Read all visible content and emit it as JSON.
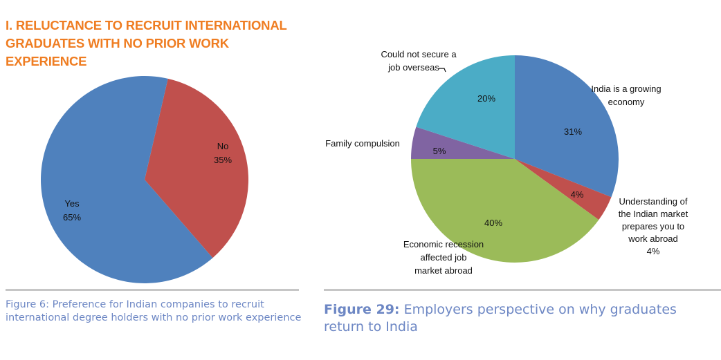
{
  "section_title": "I. RELUCTANCE TO RECRUIT INTERNATIONAL GRADUATES WITH NO PRIOR WORK EXPERIENCE",
  "figure_left": {
    "caption": "Figure 6: Preference for Indian companies to recruit international degree holders with no prior work experience"
  },
  "figure_right": {
    "caption_prefix": "Figure 29:",
    "caption_text": " Employers perspective on why graduates return to India"
  },
  "colors": {
    "title_orange": "#ef7d22",
    "caption_blue": "#6d87c4",
    "blue": "#4f81bd",
    "red": "#c0504d",
    "green": "#9bbb59",
    "purple": "#8064a2",
    "teal": "#4bacc6"
  },
  "chart_data": [
    {
      "type": "pie",
      "title": "Preference for Indian companies to recruit international degree holders with no prior work experience",
      "categories": [
        "No",
        "Yes"
      ],
      "values": [
        35,
        65
      ],
      "unit": "%",
      "colors": [
        "#c0504d",
        "#4f81bd"
      ],
      "labels": [
        {
          "name": "No",
          "pct": "35%"
        },
        {
          "name": "Yes",
          "pct": "65%"
        }
      ]
    },
    {
      "type": "pie",
      "title": "Employers perspective on why graduates return to India",
      "categories": [
        "India is a growing economy",
        "Understanding of the Indian market prepares you to work abroad",
        "Economic recession affected job market abroad",
        "Family compulsion",
        "Could not secure a job overseas"
      ],
      "values": [
        31,
        4,
        40,
        5,
        20
      ],
      "unit": "%",
      "colors": [
        "#4f81bd",
        "#c0504d",
        "#9bbb59",
        "#8064a2",
        "#4bacc6"
      ],
      "labels": {
        "india_line1": "India is a growing",
        "india_line2": "economy",
        "india_pct": "31%",
        "understanding_line1": "Understanding of",
        "understanding_line2": "the Indian market",
        "understanding_line3": "prepares you to",
        "understanding_line4": "work abroad",
        "understanding_pct_outside": "4%",
        "understanding_pct": "4%",
        "economic_line1": "Economic recession",
        "economic_line2": "affected job",
        "economic_line3": "market abroad",
        "economic_pct": "40%",
        "family_line1": "Family compulsion",
        "family_pct": "5%",
        "could_line1": "Could not secure a",
        "could_line2": "job overseas",
        "could_pct": "20%"
      }
    }
  ]
}
